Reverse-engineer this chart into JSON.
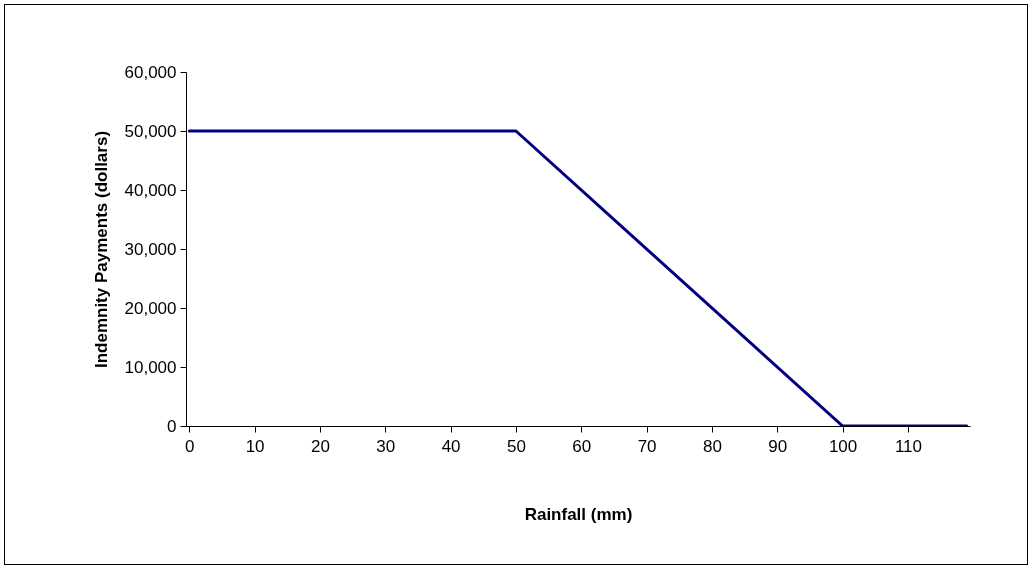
{
  "chart_data": {
    "type": "line",
    "xlabel": "Rainfall (mm)",
    "ylabel": "Indemnity Payments (dollars)",
    "x": [
      0,
      50,
      100,
      119
    ],
    "series": [
      {
        "color": "#000080",
        "values": [
          50000,
          50000,
          0,
          0
        ]
      }
    ],
    "xlim": [
      -0.5,
      119.5
    ],
    "xticks": [
      0,
      10,
      20,
      30,
      40,
      50,
      60,
      70,
      80,
      90,
      100,
      110
    ],
    "ylim": [
      0,
      60000
    ],
    "yticks": [
      0,
      {
        "value": 10000,
        "label": "10,000"
      },
      {
        "value": 20000,
        "label": "20,000"
      },
      {
        "value": 30000,
        "label": "30,000"
      },
      {
        "value": 40000,
        "label": "40,000"
      },
      {
        "value": 50000,
        "label": "50,000"
      },
      {
        "value": 60000,
        "label": "60,000"
      }
    ],
    "grid": false,
    "marker": "none",
    "line_style": "solid"
  }
}
